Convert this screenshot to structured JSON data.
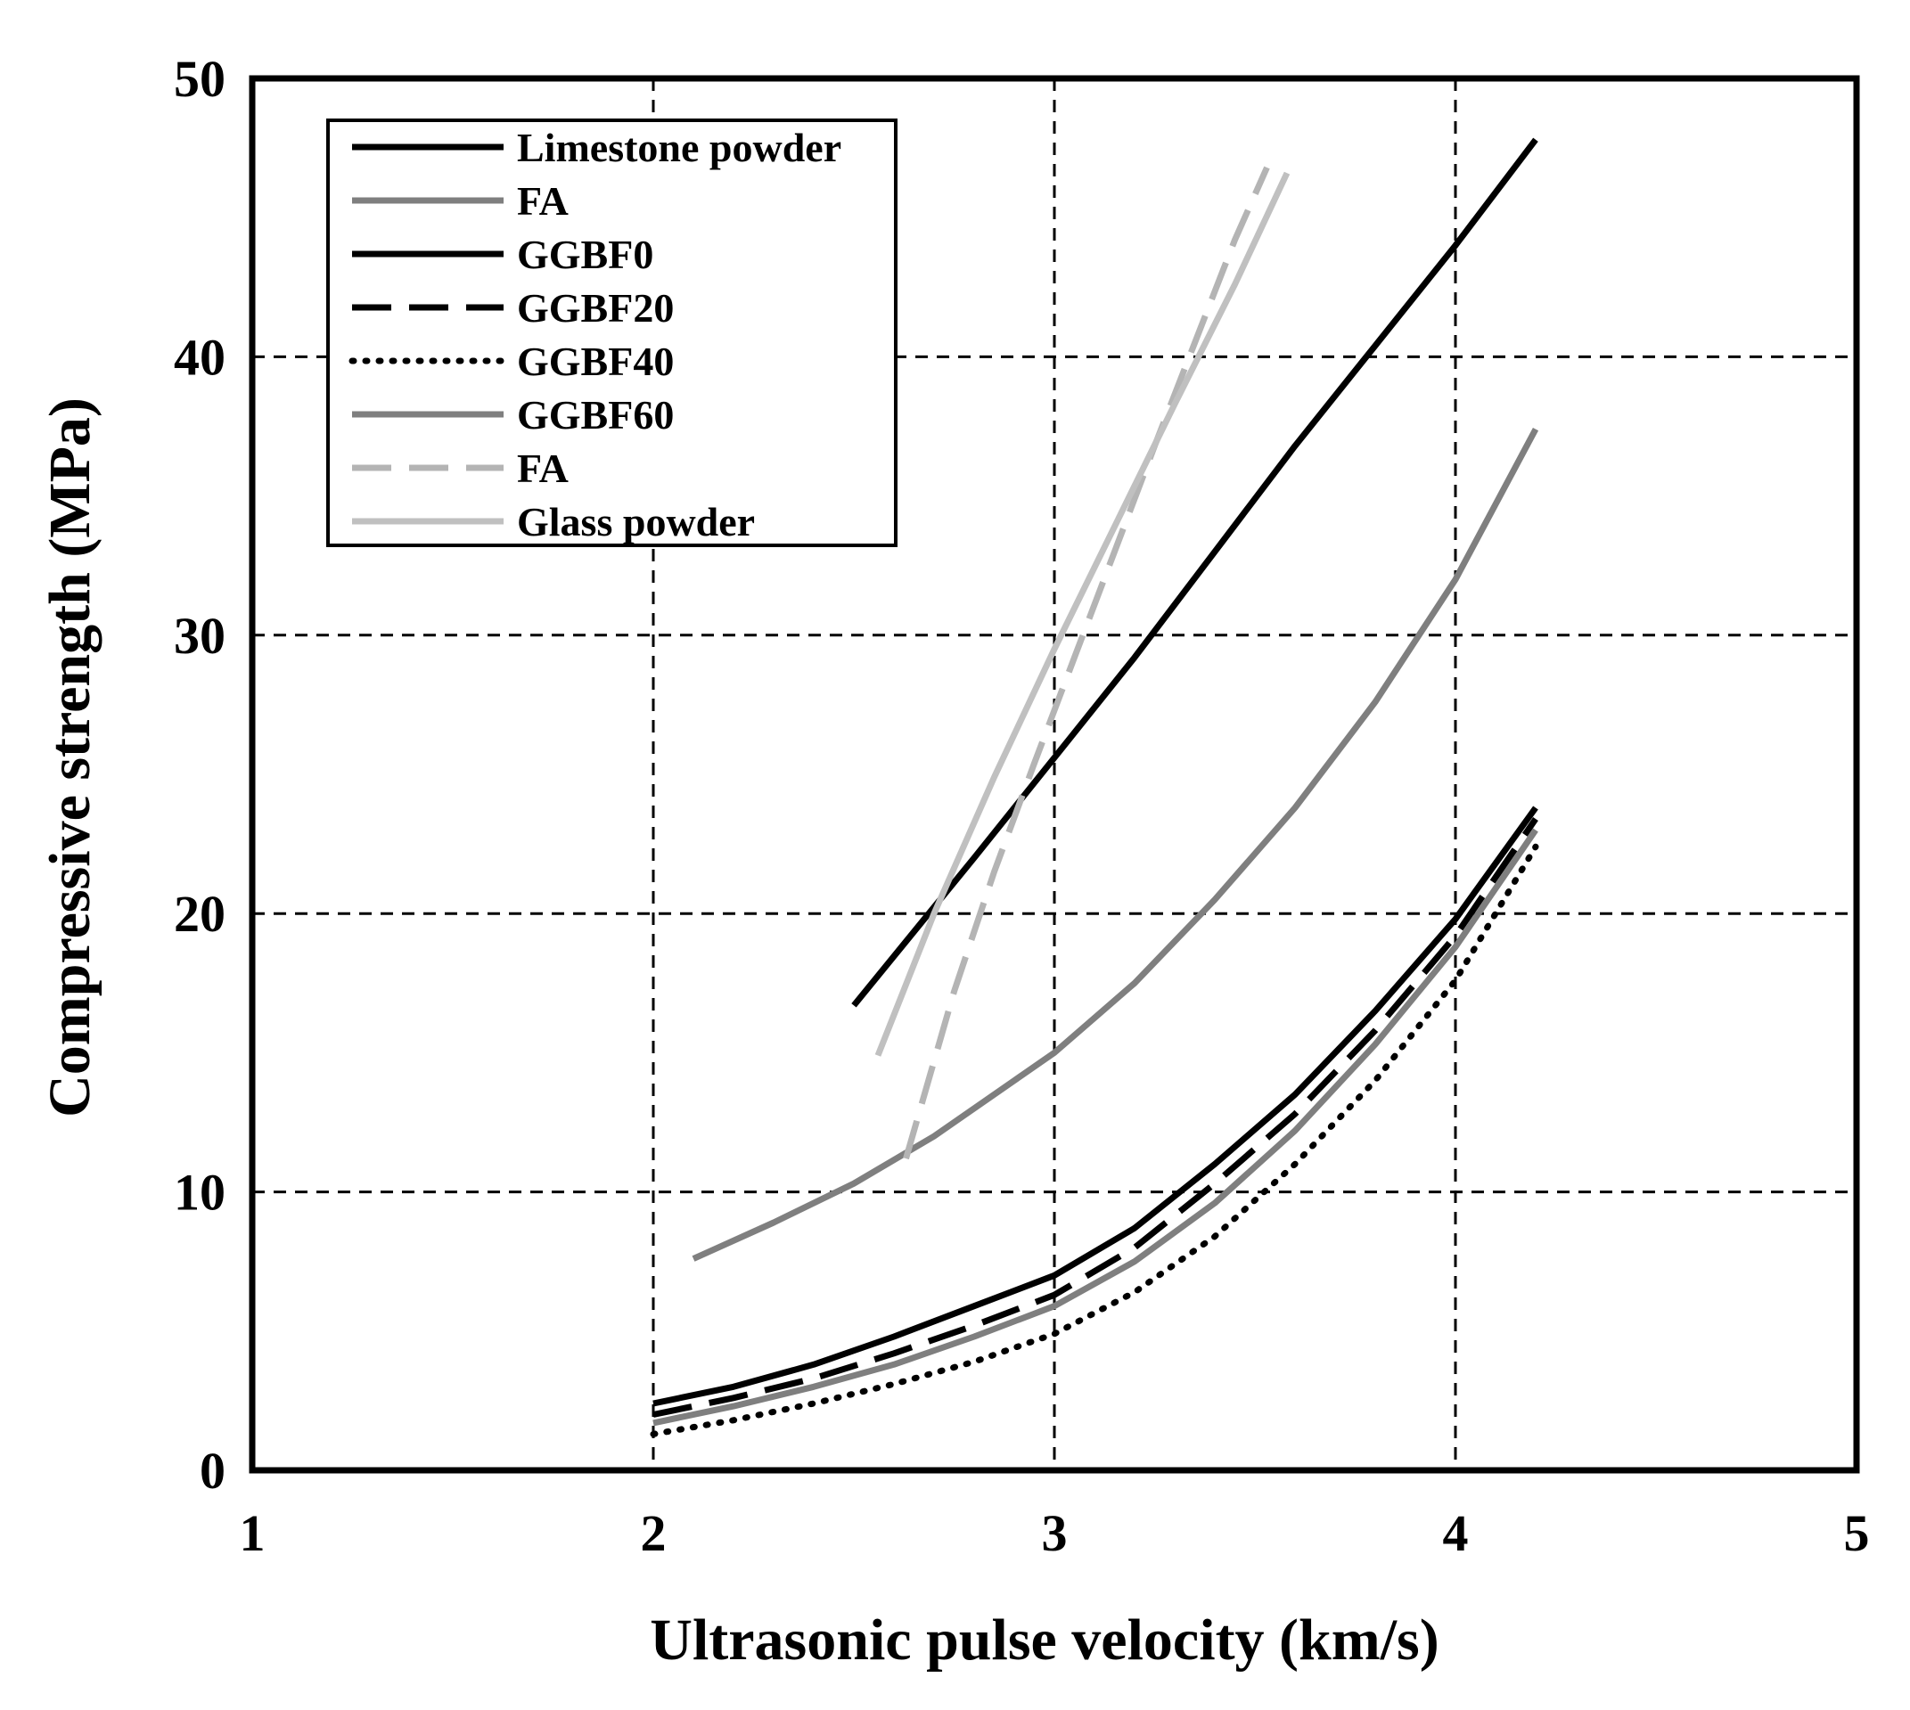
{
  "chart_data": {
    "type": "line",
    "title": "",
    "xlabel": "Ultrasonic pulse velocity (km/s)",
    "ylabel": "Compressive strength (MPa)",
    "xlim": [
      1,
      5
    ],
    "ylim": [
      0,
      50
    ],
    "xticks": [
      "1",
      "2",
      "3",
      "4",
      "5"
    ],
    "yticks": [
      "0",
      "10",
      "20",
      "30",
      "40",
      "50"
    ],
    "grid": true,
    "legend_position": "top-left",
    "series": [
      {
        "name": "Limestone powder",
        "color": "#000000",
        "dash": "solid",
        "x": [
          2.5,
          2.8,
          3.0,
          3.2,
          3.4,
          3.6,
          3.8,
          4.0,
          4.2
        ],
        "y": [
          16.7,
          22.0,
          25.6,
          29.2,
          33.0,
          36.8,
          40.4,
          44.0,
          47.8
        ]
      },
      {
        "name": "FA",
        "color": "#7f7f7f",
        "dash": "solid",
        "x": [
          2.1,
          2.3,
          2.5,
          2.7,
          2.9,
          3.0,
          3.2,
          3.4,
          3.6,
          3.8,
          4.0,
          4.2
        ],
        "y": [
          7.6,
          8.9,
          10.3,
          12.0,
          14.0,
          15.0,
          17.5,
          20.5,
          23.8,
          27.6,
          32.0,
          37.4
        ]
      },
      {
        "name": "GGBF0",
        "color": "#000000",
        "dash": "solid",
        "x": [
          2.0,
          2.2,
          2.4,
          2.6,
          2.8,
          3.0,
          3.2,
          3.4,
          3.6,
          3.8,
          4.0,
          4.2
        ],
        "y": [
          2.4,
          3.0,
          3.8,
          4.8,
          5.9,
          7.0,
          8.7,
          11.0,
          13.5,
          16.5,
          19.8,
          23.8
        ]
      },
      {
        "name": "GGBF20",
        "color": "#000000",
        "dash": "long-dash",
        "x": [
          2.0,
          2.2,
          2.4,
          2.6,
          2.8,
          3.0,
          3.2,
          3.4,
          3.6,
          3.8,
          4.0,
          4.2
        ],
        "y": [
          2.0,
          2.6,
          3.3,
          4.2,
          5.2,
          6.3,
          8.0,
          10.3,
          12.8,
          15.8,
          19.2,
          23.4
        ]
      },
      {
        "name": "GGBF40",
        "color": "#000000",
        "dash": "dotted",
        "x": [
          2.0,
          2.2,
          2.4,
          2.6,
          2.8,
          3.0,
          3.2,
          3.4,
          3.6,
          3.8,
          4.0,
          4.2
        ],
        "y": [
          1.3,
          1.8,
          2.4,
          3.1,
          3.9,
          4.9,
          6.4,
          8.4,
          11.0,
          14.0,
          17.6,
          22.4
        ]
      },
      {
        "name": "GGBF60",
        "color": "#7f7f7f",
        "dash": "solid",
        "x": [
          2.0,
          2.2,
          2.4,
          2.6,
          2.8,
          3.0,
          3.2,
          3.4,
          3.6,
          3.8,
          4.0,
          4.2
        ],
        "y": [
          1.7,
          2.3,
          3.0,
          3.8,
          4.8,
          5.9,
          7.5,
          9.6,
          12.2,
          15.3,
          18.8,
          23.0
        ]
      },
      {
        "name": "FA",
        "color": "#b4b4b4",
        "dash": "long-dash",
        "x": [
          2.63,
          2.75,
          2.85,
          2.95,
          3.05,
          3.15,
          3.25,
          3.35,
          3.45,
          3.53
        ],
        "y": [
          11.2,
          17.2,
          21.5,
          25.4,
          29.2,
          33.0,
          36.8,
          40.5,
          44.2,
          46.8
        ]
      },
      {
        "name": "Glass powder",
        "color": "#c0c0c0",
        "dash": "solid",
        "x": [
          2.56,
          2.7,
          2.85,
          3.0,
          3.15,
          3.3,
          3.45,
          3.58
        ],
        "y": [
          14.9,
          20.0,
          24.9,
          29.5,
          33.9,
          38.3,
          42.6,
          46.6
        ]
      }
    ]
  }
}
